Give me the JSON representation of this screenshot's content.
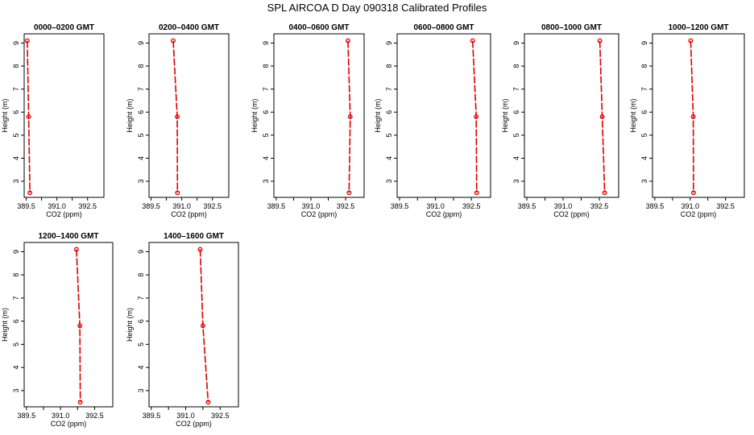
{
  "page": {
    "title": "SPL AIRCOA D  Day 090318  Calibrated Profiles"
  },
  "colors": {
    "series": "#dd0000",
    "axis": "#000000"
  },
  "chart_data": [
    {
      "type": "line",
      "title": "0000–0200 GMT",
      "xlabel": "CO2 (ppm)",
      "ylabel": "Height (m)",
      "xlim": [
        389.4,
        393.3
      ],
      "ylim": [
        2.3,
        9.4
      ],
      "xticks": [
        "389.5",
        "391.0",
        "392.5"
      ],
      "yticks": [
        "3",
        "4",
        "5",
        "6",
        "7",
        "8",
        "9"
      ],
      "x": [
        389.55,
        389.62,
        389.68
      ],
      "y": [
        9.1,
        5.8,
        2.5
      ]
    },
    {
      "type": "line",
      "title": "0200–0400 GMT",
      "xlabel": "CO2 (ppm)",
      "ylabel": "Height (m)",
      "xlim": [
        389.4,
        393.3
      ],
      "ylim": [
        2.3,
        9.4
      ],
      "xticks": [
        "389.5",
        "391.0",
        "392.5"
      ],
      "yticks": [
        "3",
        "4",
        "5",
        "6",
        "7",
        "8",
        "9"
      ],
      "x": [
        390.58,
        390.78,
        390.79
      ],
      "y": [
        9.1,
        5.8,
        2.5
      ]
    },
    {
      "type": "line",
      "title": "0400–0600 GMT",
      "xlabel": "CO2 (ppm)",
      "ylabel": "Height (m)",
      "xlim": [
        389.4,
        393.3
      ],
      "ylim": [
        2.3,
        9.4
      ],
      "xticks": [
        "389.5",
        "391.0",
        "392.5"
      ],
      "yticks": [
        "3",
        "4",
        "5",
        "6",
        "7",
        "8",
        "9"
      ],
      "x": [
        392.6,
        392.7,
        392.65
      ],
      "y": [
        9.1,
        5.8,
        2.5
      ]
    },
    {
      "type": "line",
      "title": "0600–0800 GMT",
      "xlabel": "CO2 (ppm)",
      "ylabel": "Height (m)",
      "xlim": [
        389.4,
        393.3
      ],
      "ylim": [
        2.3,
        9.4
      ],
      "xticks": [
        "389.5",
        "391.0",
        "392.5"
      ],
      "yticks": [
        "3",
        "4",
        "5",
        "6",
        "7",
        "8",
        "9"
      ],
      "x": [
        392.55,
        392.7,
        392.72
      ],
      "y": [
        9.1,
        5.8,
        2.5
      ]
    },
    {
      "type": "line",
      "title": "0800–1000 GMT",
      "xlabel": "CO2 (ppm)",
      "ylabel": "Height (m)",
      "xlim": [
        389.4,
        393.3
      ],
      "ylim": [
        2.3,
        9.4
      ],
      "xticks": [
        "389.5",
        "391.0",
        "392.5"
      ],
      "yticks": [
        "3",
        "4",
        "5",
        "6",
        "7",
        "8",
        "9"
      ],
      "x": [
        392.52,
        392.62,
        392.72
      ],
      "y": [
        9.1,
        5.8,
        2.5
      ]
    },
    {
      "type": "line",
      "title": "1000–1200 GMT",
      "xlabel": "CO2 (ppm)",
      "ylabel": "Height (m)",
      "xlim": [
        389.4,
        393.3
      ],
      "ylim": [
        2.3,
        9.4
      ],
      "xticks": [
        "389.5",
        "391.0",
        "392.5"
      ],
      "yticks": [
        "3",
        "4",
        "5",
        "6",
        "7",
        "8",
        "9"
      ],
      "x": [
        391.02,
        391.13,
        391.14
      ],
      "y": [
        9.1,
        5.8,
        2.5
      ]
    },
    {
      "type": "line",
      "title": "1200–1400 GMT",
      "xlabel": "CO2 (ppm)",
      "ylabel": "Height (m)",
      "xlim": [
        389.4,
        393.3
      ],
      "ylim": [
        2.3,
        9.4
      ],
      "xticks": [
        "389.5",
        "391.0",
        "392.5"
      ],
      "yticks": [
        "3",
        "4",
        "5",
        "6",
        "7",
        "8",
        "9"
      ],
      "x": [
        391.7,
        391.85,
        391.87
      ],
      "y": [
        9.1,
        5.8,
        2.5
      ]
    },
    {
      "type": "line",
      "title": "1400–1600 GMT",
      "xlabel": "CO2 (ppm)",
      "ylabel": "Height (m)",
      "xlim": [
        389.4,
        393.3
      ],
      "ylim": [
        2.3,
        9.4
      ],
      "xticks": [
        "389.5",
        "391.0",
        "392.5"
      ],
      "yticks": [
        "3",
        "4",
        "5",
        "6",
        "7",
        "8",
        "9"
      ],
      "x": [
        391.63,
        391.75,
        391.98
      ],
      "y": [
        9.1,
        5.8,
        2.5
      ]
    }
  ]
}
